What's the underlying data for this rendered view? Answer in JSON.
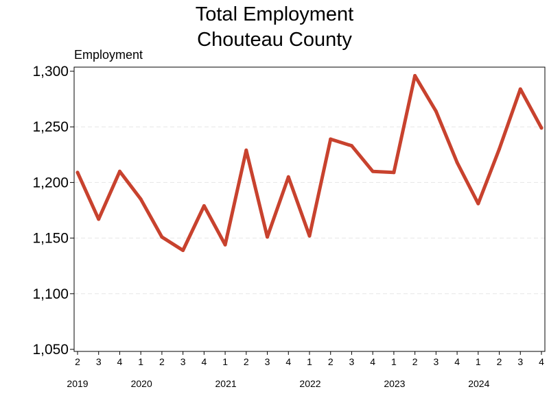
{
  "chart_data": {
    "type": "line",
    "title": "Total Employment",
    "subtitle": "Chouteau County",
    "ylabel": "Employment",
    "xlabel": "",
    "ylim": [
      1050,
      1300
    ],
    "yticks": [
      1050,
      1100,
      1150,
      1200,
      1250,
      1300
    ],
    "ytick_labels": [
      "1,050",
      "1,100",
      "1,150",
      "1,200",
      "1,250",
      "1,300"
    ],
    "grid": true,
    "line_color": "#c8422e",
    "grid_color": "#e6e6e6",
    "quarters": [
      "2",
      "3",
      "4",
      "1",
      "2",
      "3",
      "4",
      "1",
      "2",
      "3",
      "4",
      "1",
      "2",
      "3",
      "4",
      "1",
      "2",
      "3",
      "4",
      "1",
      "2",
      "3",
      "4"
    ],
    "years": [
      {
        "label": "2019",
        "quarter_index": 0
      },
      {
        "label": "2020",
        "quarter_index": 3
      },
      {
        "label": "2021",
        "quarter_index": 7
      },
      {
        "label": "2022",
        "quarter_index": 11
      },
      {
        "label": "2023",
        "quarter_index": 15
      },
      {
        "label": "2024",
        "quarter_index": 19
      }
    ],
    "series": [
      {
        "name": "",
        "values": [
          1209,
          1167,
          1210,
          1185,
          1151,
          1139,
          1179,
          1144,
          1229,
          1151,
          1205,
          1152,
          1239,
          1233,
          1210,
          1209,
          1296,
          1264,
          1218,
          1181,
          1230,
          1284,
          1249
        ]
      }
    ]
  }
}
